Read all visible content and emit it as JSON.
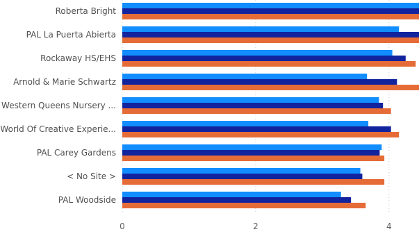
{
  "chart_data": {
    "type": "bar",
    "orientation": "horizontal",
    "categories": [
      "Roberta Bright",
      "PAL La Puerta Abierta",
      "Rockaway HS/EHS",
      "Arnold & Marie Schwartz",
      "Western Queens Nursery ...",
      "World Of Creative Experie...",
      "PAL Carey Gardens",
      "< No Site >",
      "PAL Woodside"
    ],
    "series": [
      {
        "color": "#118dff",
        "values": [
          4.45,
          4.15,
          4.05,
          3.67,
          3.85,
          3.69,
          3.89,
          3.57,
          3.28
        ]
      },
      {
        "color": "#12239e",
        "values": [
          4.45,
          4.45,
          4.25,
          4.12,
          3.91,
          4.03,
          3.86,
          3.6,
          3.43
        ]
      },
      {
        "color": "#e66c37",
        "values": [
          4.45,
          4.45,
          4.4,
          4.45,
          4.03,
          4.15,
          3.93,
          3.93,
          3.65
        ]
      }
    ],
    "x_ticks": [
      "0",
      "2",
      "4"
    ],
    "xlim": [
      0,
      4.45
    ],
    "grid": true,
    "legend": "none"
  }
}
